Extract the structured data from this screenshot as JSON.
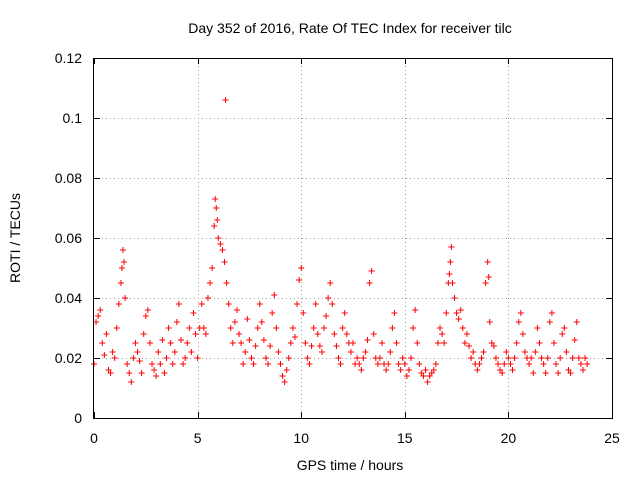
{
  "chart_data": {
    "type": "scatter",
    "title": "Day 352 of 2016, Rate Of TEC Index for receiver tilc",
    "xlabel": "GPS time / hours",
    "ylabel": "ROTI / TECUs",
    "xlim": [
      0,
      25
    ],
    "ylim": [
      0,
      0.12
    ],
    "x_ticks": [
      0,
      5,
      10,
      15,
      20,
      25
    ],
    "x_tick_labels": [
      "0",
      "5",
      "10",
      "15",
      "20",
      "25"
    ],
    "y_ticks": [
      0,
      0.02,
      0.04,
      0.06,
      0.08,
      0.1,
      0.12
    ],
    "y_tick_labels": [
      "0",
      "0.02",
      "0.04",
      "0.06",
      "0.08",
      "0.1",
      "0.12"
    ],
    "grid": true,
    "legend": "none",
    "marker": "plus",
    "series": [
      {
        "name": "ROTI",
        "color": "#ff0000",
        "x": [
          0.0,
          0.1,
          0.2,
          0.3,
          0.4,
          0.5,
          0.6,
          0.7,
          0.8,
          0.9,
          1.0,
          1.1,
          1.2,
          1.3,
          1.35,
          1.4,
          1.45,
          1.5,
          1.6,
          1.7,
          1.8,
          1.9,
          2.0,
          2.1,
          2.2,
          2.3,
          2.4,
          2.5,
          2.6,
          2.7,
          2.8,
          2.9,
          3.0,
          3.1,
          3.2,
          3.3,
          3.4,
          3.5,
          3.6,
          3.7,
          3.8,
          3.9,
          4.0,
          4.1,
          4.2,
          4.3,
          4.4,
          4.5,
          4.6,
          4.7,
          4.8,
          4.9,
          5.0,
          5.1,
          5.2,
          5.3,
          5.4,
          5.5,
          5.6,
          5.7,
          5.8,
          5.85,
          5.9,
          5.95,
          6.0,
          6.1,
          6.2,
          6.3,
          6.35,
          6.4,
          6.5,
          6.6,
          6.7,
          6.8,
          6.9,
          7.0,
          7.1,
          7.2,
          7.3,
          7.4,
          7.5,
          7.6,
          7.7,
          7.8,
          7.9,
          8.0,
          8.1,
          8.2,
          8.3,
          8.4,
          8.5,
          8.6,
          8.7,
          8.8,
          8.9,
          9.0,
          9.1,
          9.2,
          9.3,
          9.4,
          9.5,
          9.6,
          9.7,
          9.8,
          9.9,
          10.0,
          10.1,
          10.2,
          10.3,
          10.4,
          10.5,
          10.6,
          10.7,
          10.8,
          10.9,
          11.0,
          11.1,
          11.2,
          11.3,
          11.4,
          11.5,
          11.6,
          11.7,
          11.8,
          11.9,
          12.0,
          12.1,
          12.2,
          12.3,
          12.4,
          12.5,
          12.6,
          12.7,
          12.8,
          12.9,
          13.0,
          13.1,
          13.2,
          13.3,
          13.4,
          13.5,
          13.6,
          13.7,
          13.8,
          13.9,
          14.0,
          14.1,
          14.2,
          14.3,
          14.4,
          14.5,
          14.6,
          14.7,
          14.8,
          14.9,
          15.0,
          15.1,
          15.2,
          15.3,
          15.4,
          15.5,
          15.6,
          15.7,
          15.8,
          15.9,
          16.0,
          16.1,
          16.2,
          16.3,
          16.4,
          16.5,
          16.6,
          16.7,
          16.8,
          16.9,
          17.0,
          17.1,
          17.15,
          17.2,
          17.25,
          17.3,
          17.4,
          17.5,
          17.6,
          17.7,
          17.8,
          17.9,
          18.0,
          18.1,
          18.2,
          18.3,
          18.4,
          18.5,
          18.6,
          18.7,
          18.8,
          18.9,
          19.0,
          19.05,
          19.1,
          19.2,
          19.3,
          19.4,
          19.5,
          19.6,
          19.7,
          19.8,
          19.9,
          20.0,
          20.1,
          20.2,
          20.3,
          20.4,
          20.5,
          20.6,
          20.7,
          20.8,
          20.9,
          21.0,
          21.1,
          21.2,
          21.3,
          21.4,
          21.5,
          21.6,
          21.7,
          21.8,
          21.9,
          22.0,
          22.1,
          22.2,
          22.3,
          22.4,
          22.5,
          22.6,
          22.7,
          22.8,
          22.9,
          23.0,
          23.1,
          23.2,
          23.3,
          23.4,
          23.5,
          23.6,
          23.7,
          23.8
        ],
        "y": [
          0.018,
          0.032,
          0.034,
          0.036,
          0.025,
          0.021,
          0.028,
          0.016,
          0.015,
          0.022,
          0.02,
          0.03,
          0.038,
          0.045,
          0.05,
          0.056,
          0.052,
          0.04,
          0.018,
          0.015,
          0.012,
          0.02,
          0.025,
          0.022,
          0.019,
          0.015,
          0.028,
          0.034,
          0.036,
          0.025,
          0.018,
          0.016,
          0.014,
          0.022,
          0.018,
          0.026,
          0.015,
          0.02,
          0.03,
          0.025,
          0.018,
          0.022,
          0.032,
          0.038,
          0.026,
          0.018,
          0.02,
          0.025,
          0.03,
          0.022,
          0.035,
          0.028,
          0.02,
          0.03,
          0.038,
          0.03,
          0.028,
          0.04,
          0.045,
          0.05,
          0.064,
          0.073,
          0.07,
          0.066,
          0.06,
          0.058,
          0.056,
          0.052,
          0.106,
          0.045,
          0.038,
          0.03,
          0.025,
          0.032,
          0.036,
          0.028,
          0.025,
          0.018,
          0.022,
          0.033,
          0.026,
          0.02,
          0.018,
          0.024,
          0.03,
          0.038,
          0.032,
          0.026,
          0.02,
          0.018,
          0.024,
          0.035,
          0.041,
          0.03,
          0.022,
          0.018,
          0.014,
          0.012,
          0.016,
          0.02,
          0.025,
          0.03,
          0.027,
          0.038,
          0.046,
          0.05,
          0.035,
          0.025,
          0.02,
          0.018,
          0.024,
          0.03,
          0.038,
          0.028,
          0.024,
          0.022,
          0.03,
          0.034,
          0.04,
          0.045,
          0.038,
          0.028,
          0.024,
          0.02,
          0.018,
          0.03,
          0.035,
          0.028,
          0.025,
          0.022,
          0.025,
          0.018,
          0.02,
          0.018,
          0.016,
          0.02,
          0.022,
          0.026,
          0.045,
          0.049,
          0.028,
          0.02,
          0.018,
          0.02,
          0.025,
          0.018,
          0.016,
          0.018,
          0.022,
          0.03,
          0.035,
          0.025,
          0.018,
          0.016,
          0.02,
          0.018,
          0.014,
          0.016,
          0.02,
          0.03,
          0.036,
          0.025,
          0.018,
          0.015,
          0.014,
          0.016,
          0.012,
          0.014,
          0.015,
          0.016,
          0.018,
          0.025,
          0.03,
          0.028,
          0.025,
          0.035,
          0.045,
          0.048,
          0.052,
          0.057,
          0.045,
          0.04,
          0.035,
          0.033,
          0.036,
          0.03,
          0.025,
          0.028,
          0.024,
          0.02,
          0.022,
          0.018,
          0.016,
          0.018,
          0.02,
          0.022,
          0.045,
          0.052,
          0.047,
          0.032,
          0.025,
          0.024,
          0.02,
          0.018,
          0.016,
          0.015,
          0.018,
          0.022,
          0.02,
          0.018,
          0.016,
          0.02,
          0.025,
          0.032,
          0.035,
          0.028,
          0.022,
          0.02,
          0.018,
          0.02,
          0.015,
          0.022,
          0.03,
          0.025,
          0.02,
          0.018,
          0.015,
          0.02,
          0.032,
          0.035,
          0.025,
          0.018,
          0.015,
          0.02,
          0.028,
          0.03,
          0.022,
          0.016,
          0.015,
          0.02,
          0.026,
          0.032,
          0.02,
          0.018,
          0.016,
          0.02,
          0.018
        ]
      }
    ]
  }
}
